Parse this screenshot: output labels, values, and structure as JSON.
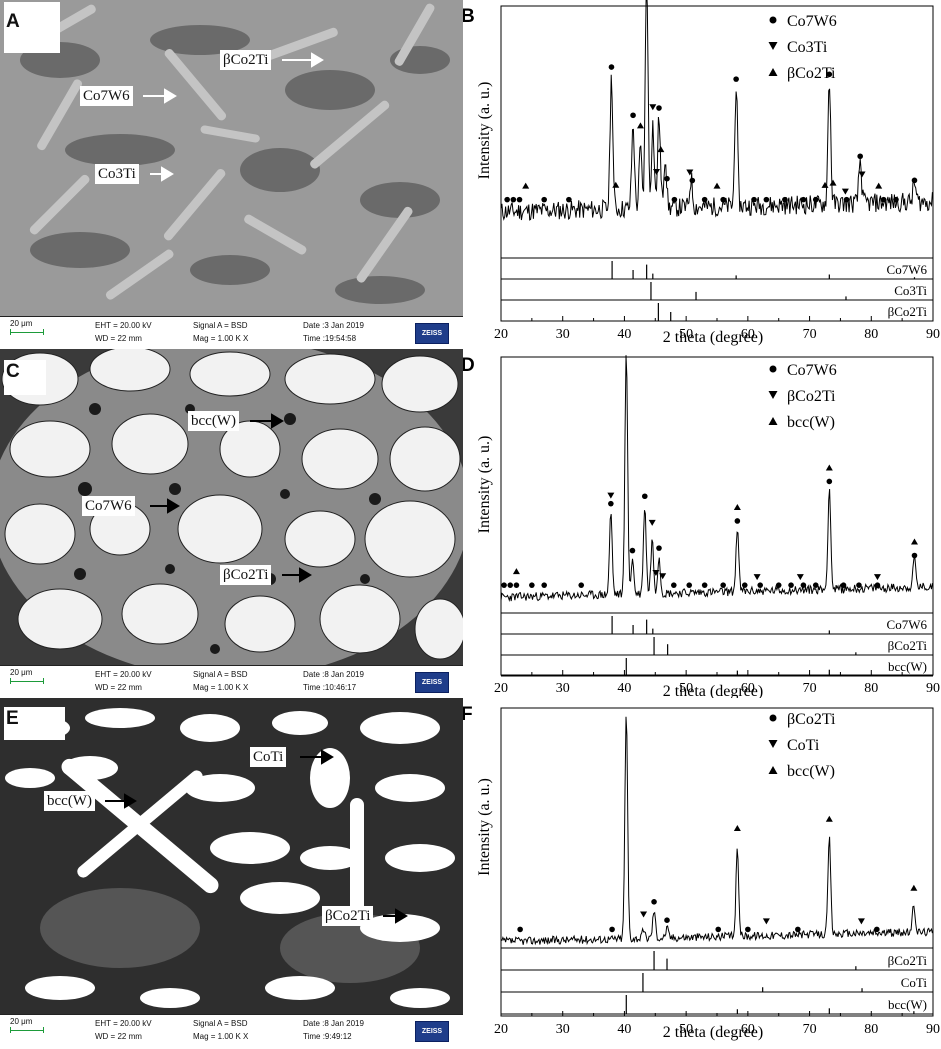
{
  "panels": {
    "A": {
      "letter": "A",
      "labels": [
        "βCo2Ti",
        "Co7W6",
        "Co3Ti"
      ],
      "infobar": {
        "scale": "20 μm",
        "eht": "EHT = 20.00 kV",
        "wd": "WD = 22 mm",
        "signal": "Signal A = BSD",
        "mag": "Mag = 1.00 K X",
        "date": "Date :3 Jan 2019",
        "time": "Time :19:54:58",
        "logo": "ZEISS"
      }
    },
    "B": {
      "letter": "B",
      "legend": [
        {
          "marker": "circle",
          "label": "Co7W6"
        },
        {
          "marker": "down",
          "label": "Co3Ti"
        },
        {
          "marker": "up",
          "label": "βCo2Ti"
        }
      ],
      "ylabel": "Intensity (a. u.)",
      "xlabel": "2 theta (degree)",
      "ref_labels": [
        "Co7W6",
        "Co3Ti",
        "βCo2Ti"
      ]
    },
    "C": {
      "letter": "C",
      "labels": [
        "bcc(W)",
        "Co7W6",
        "βCo2Ti"
      ],
      "infobar": {
        "scale": "20 μm",
        "eht": "EHT = 20.00 kV",
        "wd": "WD = 22 mm",
        "signal": "Signal A = BSD",
        "mag": "Mag = 1.00 K X",
        "date": "Date :8 Jan 2019",
        "time": "Time :10:46:17",
        "logo": "ZEISS"
      }
    },
    "D": {
      "letter": "D",
      "legend": [
        {
          "marker": "circle",
          "label": "Co7W6"
        },
        {
          "marker": "down",
          "label": "βCo2Ti"
        },
        {
          "marker": "up",
          "label": "bcc(W)"
        }
      ],
      "ylabel": "Intensity (a. u.)",
      "xlabel": "2 theta (degree)",
      "ref_labels": [
        "Co7W6",
        "βCo2Ti",
        "bcc(W)"
      ]
    },
    "E": {
      "letter": "E",
      "labels": [
        "CoTi",
        "bcc(W)",
        "βCo2Ti"
      ],
      "infobar": {
        "scale": "20 μm",
        "eht": "EHT = 20.00 kV",
        "wd": "WD = 22 mm",
        "signal": "Signal A = BSD",
        "mag": "Mag = 1.00 K X",
        "date": "Date :8 Jan 2019",
        "time": "Time :9:49:12",
        "logo": "ZEISS"
      }
    },
    "F": {
      "letter": "F",
      "legend": [
        {
          "marker": "circle",
          "label": "βCo2Ti"
        },
        {
          "marker": "down",
          "label": "CoTi"
        },
        {
          "marker": "up",
          "label": "bcc(W)"
        }
      ],
      "ylabel": "Intensity (a. u.)",
      "xlabel": "2 theta (degree)",
      "ref_labels": [
        "βCo2Ti",
        "CoTi",
        "bcc(W)"
      ]
    }
  },
  "chart_data": [
    {
      "type": "line",
      "panel": "B",
      "xlabel": "2 theta (degree)",
      "ylabel": "Intensity (a. u.)",
      "xlim": [
        20,
        90
      ],
      "xticks": [
        20,
        30,
        40,
        50,
        60,
        70,
        80,
        90
      ],
      "baseline": 0.18,
      "peaks": [
        [
          37.9,
          0.55
        ],
        [
          41.4,
          0.35
        ],
        [
          42.6,
          0.25
        ],
        [
          43.6,
          0.97
        ],
        [
          44.6,
          0.35
        ],
        [
          45.6,
          0.38
        ],
        [
          46.6,
          0.22
        ],
        [
          50.8,
          0.12
        ],
        [
          58.1,
          0.5
        ],
        [
          73.2,
          0.52
        ],
        [
          78.2,
          0.18
        ],
        [
          87.0,
          0.08
        ]
      ],
      "markers": {
        "circle": [
          21,
          22,
          23,
          27,
          31,
          37.9,
          41.4,
          43.6,
          45.6,
          46.9,
          48.1,
          51,
          53,
          56,
          58.1,
          61,
          63,
          66,
          69,
          71,
          73.2,
          76,
          78.2,
          82,
          84,
          87
        ],
        "down": [
          44.6,
          45.2,
          50.6,
          75.8,
          78.5
        ],
        "up": [
          24,
          38.6,
          42.6,
          45.9,
          55,
          72.5,
          73.8,
          81.2
        ]
      },
      "reference": [
        {
          "name": "Co7W6",
          "lines": [
            [
              38.0,
              1.0
            ],
            [
              41.4,
              0.5
            ],
            [
              43.6,
              0.8
            ],
            [
              44.6,
              0.3
            ],
            [
              58.1,
              0.2
            ],
            [
              73.2,
              0.25
            ],
            [
              87.0,
              0.1
            ]
          ]
        },
        {
          "name": "Co3Ti",
          "lines": [
            [
              44.3,
              1.0
            ],
            [
              51.6,
              0.45
            ],
            [
              75.9,
              0.2
            ]
          ]
        },
        {
          "name": "βCo2Ti",
          "lines": [
            [
              45.5,
              1.0
            ],
            [
              47.5,
              0.5
            ]
          ]
        }
      ]
    },
    {
      "type": "line",
      "panel": "D",
      "xlabel": "2 theta (degree)",
      "ylabel": "Intensity (a. u.)",
      "xlim": [
        20,
        90
      ],
      "xticks": [
        20,
        30,
        40,
        50,
        60,
        70,
        80,
        90
      ],
      "baseline": 0.06,
      "peaks": [
        [
          37.8,
          0.33
        ],
        [
          40.3,
          0.98
        ],
        [
          41.3,
          0.14
        ],
        [
          43.3,
          0.36
        ],
        [
          44.5,
          0.22
        ],
        [
          45.6,
          0.15
        ],
        [
          58.3,
          0.26
        ],
        [
          73.2,
          0.42
        ],
        [
          87.0,
          0.12
        ]
      ],
      "markers": {
        "circle": [
          20.5,
          21.5,
          22.5,
          25,
          27,
          33,
          37.8,
          41.3,
          43.3,
          45.6,
          48,
          50.5,
          53,
          56,
          58.3,
          59.5,
          62,
          65,
          67,
          69,
          71,
          73.2,
          75.5,
          78,
          81,
          87
        ],
        "down": [
          37.8,
          44.5,
          45.1,
          46.2,
          61.5,
          68.5,
          81.0
        ],
        "up": [
          22.5,
          40.3,
          58.3,
          73.2,
          87
        ]
      },
      "reference": [
        {
          "name": "Co7W6",
          "lines": [
            [
              38.0,
              1.0
            ],
            [
              41.4,
              0.5
            ],
            [
              43.6,
              0.8
            ],
            [
              44.6,
              0.3
            ],
            [
              73.2,
              0.2
            ]
          ]
        },
        {
          "name": "βCo2Ti",
          "lines": [
            [
              44.8,
              1.0
            ],
            [
              47.0,
              0.6
            ],
            [
              77.5,
              0.15
            ]
          ]
        },
        {
          "name": "bcc(W)",
          "lines": [
            [
              40.3,
              1.0
            ],
            [
              58.3,
              0.3
            ],
            [
              73.2,
              0.35
            ]
          ]
        }
      ]
    },
    {
      "type": "line",
      "panel": "F",
      "xlabel": "2 theta (degree)",
      "ylabel": "Intensity (a. u.)",
      "xlim": [
        20,
        90
      ],
      "xticks": [
        20,
        30,
        40,
        50,
        60,
        70,
        80,
        90
      ],
      "baseline": 0.02,
      "peaks": [
        [
          40.3,
          0.98
        ],
        [
          44.8,
          0.12
        ],
        [
          46.9,
          0.04
        ],
        [
          58.3,
          0.38
        ],
        [
          73.2,
          0.42
        ],
        [
          86.9,
          0.12
        ],
        [
          43.1,
          0.03
        ]
      ],
      "markers": {
        "circle": [
          23.1,
          38.0,
          44.8,
          46.9,
          55.2,
          60.0,
          68.1,
          80.9
        ],
        "down": [
          43.1,
          63.0,
          78.4
        ],
        "up": [
          40.3,
          58.3,
          73.2,
          86.9
        ]
      },
      "reference": [
        {
          "name": "βCo2Ti",
          "lines": [
            [
              44.8,
              1.0
            ],
            [
              46.9,
              0.6
            ],
            [
              77.5,
              0.2
            ]
          ]
        },
        {
          "name": "CoTi",
          "lines": [
            [
              43.0,
              1.0
            ],
            [
              62.4,
              0.25
            ],
            [
              78.5,
              0.2
            ]
          ]
        },
        {
          "name": "bcc(W)",
          "lines": [
            [
              40.3,
              1.0
            ],
            [
              58.3,
              0.25
            ],
            [
              73.2,
              0.3
            ],
            [
              86.9,
              0.15
            ]
          ]
        }
      ]
    }
  ],
  "colors": {
    "sem_bar_border": "#222222",
    "zeiss_blue": "#1f3d8a",
    "scale_green": "#1d9b3a"
  }
}
